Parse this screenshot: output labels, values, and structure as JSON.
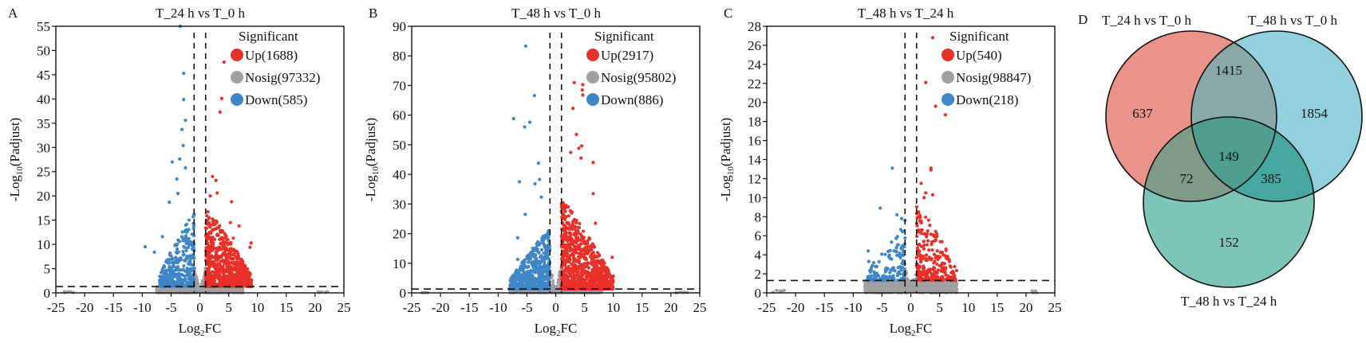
{
  "figure": {
    "panels": [
      "A",
      "B",
      "C",
      "D"
    ]
  },
  "chart_data": [
    {
      "type": "scatter",
      "panel": "A",
      "title": "T_24 h vs T_0 h",
      "xlabel": "Log2FC",
      "ylabel": "-Log10(Padjust)",
      "xlim": [
        -25,
        25
      ],
      "ylim": [
        0,
        55
      ],
      "xticks": [
        -25,
        -20,
        -15,
        -10,
        -5,
        0,
        5,
        10,
        15,
        20,
        25
      ],
      "yticks": [
        0,
        5,
        10,
        15,
        20,
        25,
        30,
        35,
        40,
        45,
        50,
        55
      ],
      "thresholds": {
        "log2fc": [
          -1,
          1
        ],
        "neg_log10_padj": 1.3
      },
      "legend": {
        "title": "Significant",
        "position": "top-right",
        "entries": [
          {
            "label": "Up(1688)",
            "color": "#e8302a"
          },
          {
            "label": "Nosig(97332)",
            "color": "#a0a0a3"
          },
          {
            "label": "Down(585)",
            "color": "#3f86c6"
          }
        ]
      },
      "series": [
        {
          "name": "Up",
          "count": 1688,
          "color": "#e8302a",
          "spread": {
            "x": [
              1,
              9
            ],
            "y_max": 16
          },
          "outliers": [
            [
              2.2,
              24
            ],
            [
              2.8,
              23.2
            ],
            [
              3,
              20.6
            ],
            [
              1.8,
              20
            ],
            [
              5.5,
              18.8
            ],
            [
              5.3,
              14.5
            ],
            [
              6.8,
              13.8
            ],
            [
              8.9,
              10.3
            ],
            [
              8.7,
              9.4
            ],
            [
              5.8,
              11.3
            ],
            [
              3.8,
              40.1
            ],
            [
              3.5,
              37.3
            ],
            [
              4.2,
              47.6
            ]
          ]
        },
        {
          "name": "Nosig",
          "count": 97332,
          "color": "#a0a0a3",
          "spread": {
            "x": [
              -7.5,
              7.5
            ],
            "y_max": 1.3
          }
        },
        {
          "name": "Down",
          "count": 585,
          "color": "#3f86c6",
          "spread": {
            "x": [
              -7,
              -1
            ],
            "y_max": 15
          },
          "outliers": [
            [
              -3.4,
              55
            ],
            [
              -2.8,
              45.3
            ],
            [
              -2.8,
              39.9
            ],
            [
              -2.5,
              35.6
            ],
            [
              -3.1,
              33.7
            ],
            [
              -2.9,
              30.4
            ],
            [
              -3.5,
              27.6
            ],
            [
              -4.8,
              27
            ],
            [
              -2.5,
              25.8
            ],
            [
              -5.3,
              18.7
            ],
            [
              -4,
              23.5
            ],
            [
              -9.5,
              9.5
            ],
            [
              -7.9,
              8.4
            ],
            [
              -6.5,
              11.6
            ],
            [
              -3.8,
              20.5
            ]
          ]
        }
      ]
    },
    {
      "type": "scatter",
      "panel": "B",
      "title": "T_48 h vs T_0 h",
      "xlabel": "Log2FC",
      "ylabel": "-Log10(Padjust)",
      "xlim": [
        -25,
        25
      ],
      "ylim": [
        0,
        90
      ],
      "xticks": [
        -25,
        -20,
        -15,
        -10,
        -5,
        0,
        5,
        10,
        15,
        20,
        25
      ],
      "yticks": [
        0,
        10,
        20,
        30,
        40,
        50,
        60,
        70,
        80,
        90
      ],
      "thresholds": {
        "log2fc": [
          -1,
          1
        ],
        "neg_log10_padj": 1.3
      },
      "legend": {
        "title": "Significant",
        "position": "top-right",
        "entries": [
          {
            "label": "Up(2917)",
            "color": "#e8302a"
          },
          {
            "label": "Nosig(95802)",
            "color": "#a0a0a3"
          },
          {
            "label": "Down(886)",
            "color": "#3f86c6"
          }
        ]
      },
      "series": [
        {
          "name": "Up",
          "count": 2917,
          "color": "#e8302a",
          "spread": {
            "x": [
              1,
              10
            ],
            "y_max": 30
          },
          "outliers": [
            [
              3.2,
              71
            ],
            [
              4.7,
              70.3
            ],
            [
              4.6,
              68.5
            ],
            [
              4.7,
              66.8
            ],
            [
              3,
              62.3
            ],
            [
              3.6,
              53.5
            ],
            [
              4,
              48.8
            ],
            [
              4.5,
              49.6
            ],
            [
              2.6,
              47.4
            ],
            [
              4.4,
              45.5
            ],
            [
              6.5,
              44
            ],
            [
              6.5,
              33.5
            ],
            [
              6.9,
              23.5
            ],
            [
              9.8,
              12
            ]
          ]
        },
        {
          "name": "Nosig",
          "count": 95802,
          "color": "#a0a0a3",
          "spread": {
            "x": [
              -8,
              8
            ],
            "y_max": 1.3
          }
        },
        {
          "name": "Down",
          "count": 886,
          "color": "#3f86c6",
          "spread": {
            "x": [
              -8,
              -1
            ],
            "y_max": 20
          },
          "outliers": [
            [
              -5.2,
              83.3
            ],
            [
              -3.7,
              66.6
            ],
            [
              -7.3,
              58.8
            ],
            [
              -4.5,
              57.6
            ],
            [
              -5.4,
              56
            ],
            [
              -3,
              43.8
            ],
            [
              -6.3,
              37.5
            ],
            [
              -2.8,
              38.3
            ],
            [
              -3.6,
              36.8
            ],
            [
              -2.5,
              32.3
            ],
            [
              -5.3,
              26.5
            ],
            [
              -6.6,
              18.6
            ],
            [
              -6.6,
              11.3
            ]
          ]
        }
      ]
    },
    {
      "type": "scatter",
      "panel": "C",
      "title": "T_48 h vs T_24 h",
      "xlabel": "Log2FC",
      "ylabel": "-Log10(Padjust)",
      "xlim": [
        -25,
        25
      ],
      "ylim": [
        0,
        28
      ],
      "xticks": [
        -25,
        -20,
        -15,
        -10,
        -5,
        0,
        5,
        10,
        15,
        20,
        25
      ],
      "yticks": [
        0,
        2,
        4,
        6,
        8,
        10,
        12,
        14,
        16,
        18,
        20,
        22,
        24,
        26,
        28
      ],
      "thresholds": {
        "log2fc": [
          -1,
          1
        ],
        "neg_log10_padj": 1.3
      },
      "legend": {
        "title": "Significant",
        "position": "top-right",
        "entries": [
          {
            "label": "Up(540)",
            "color": "#e8302a"
          },
          {
            "label": "Nosig(98847)",
            "color": "#a0a0a3"
          },
          {
            "label": "Down(218)",
            "color": "#3f86c6"
          }
        ]
      },
      "series": [
        {
          "name": "Up",
          "count": 540,
          "color": "#e8302a",
          "spread": {
            "x": [
              1,
              8
            ],
            "y_max": 8
          },
          "outliers": [
            [
              3.8,
              26.8
            ],
            [
              2.6,
              22.1
            ],
            [
              4.3,
              19.6
            ],
            [
              6,
              18.7
            ],
            [
              3.5,
              13.1
            ],
            [
              3.5,
              12.9
            ],
            [
              1.8,
              11.5
            ],
            [
              2.6,
              10.5
            ],
            [
              3.8,
              10.3
            ],
            [
              2.3,
              10
            ]
          ]
        },
        {
          "name": "Nosig",
          "count": 98847,
          "color": "#a0a0a3",
          "spread": {
            "x": [
              -8,
              8
            ],
            "y_max": 1.3
          }
        },
        {
          "name": "Down",
          "count": 218,
          "color": "#3f86c6",
          "spread": {
            "x": [
              -7.5,
              -1
            ],
            "y_max": 6
          },
          "outliers": [
            [
              -3.2,
              13.1
            ],
            [
              -5.3,
              8.9
            ],
            [
              -2.4,
              8.2
            ],
            [
              -1.6,
              7.8
            ],
            [
              -1,
              7.6
            ],
            [
              -7.4,
              4.4
            ],
            [
              -7.3,
              3.3
            ]
          ]
        }
      ]
    },
    {
      "type": "venn",
      "panel": "D",
      "sets": [
        {
          "name": "T_24 h vs T_0 h",
          "color": "#e58075"
        },
        {
          "name": "T_48 h vs T_0 h",
          "color": "#7ec8d6"
        },
        {
          "name": "T_48 h vs T_24 h",
          "color": "#66bbac"
        }
      ],
      "regions": {
        "A_only": 637,
        "B_only": 1854,
        "C_only": 152,
        "A_B": 1415,
        "A_C": 72,
        "B_C": 385,
        "A_B_C": 149
      }
    }
  ]
}
